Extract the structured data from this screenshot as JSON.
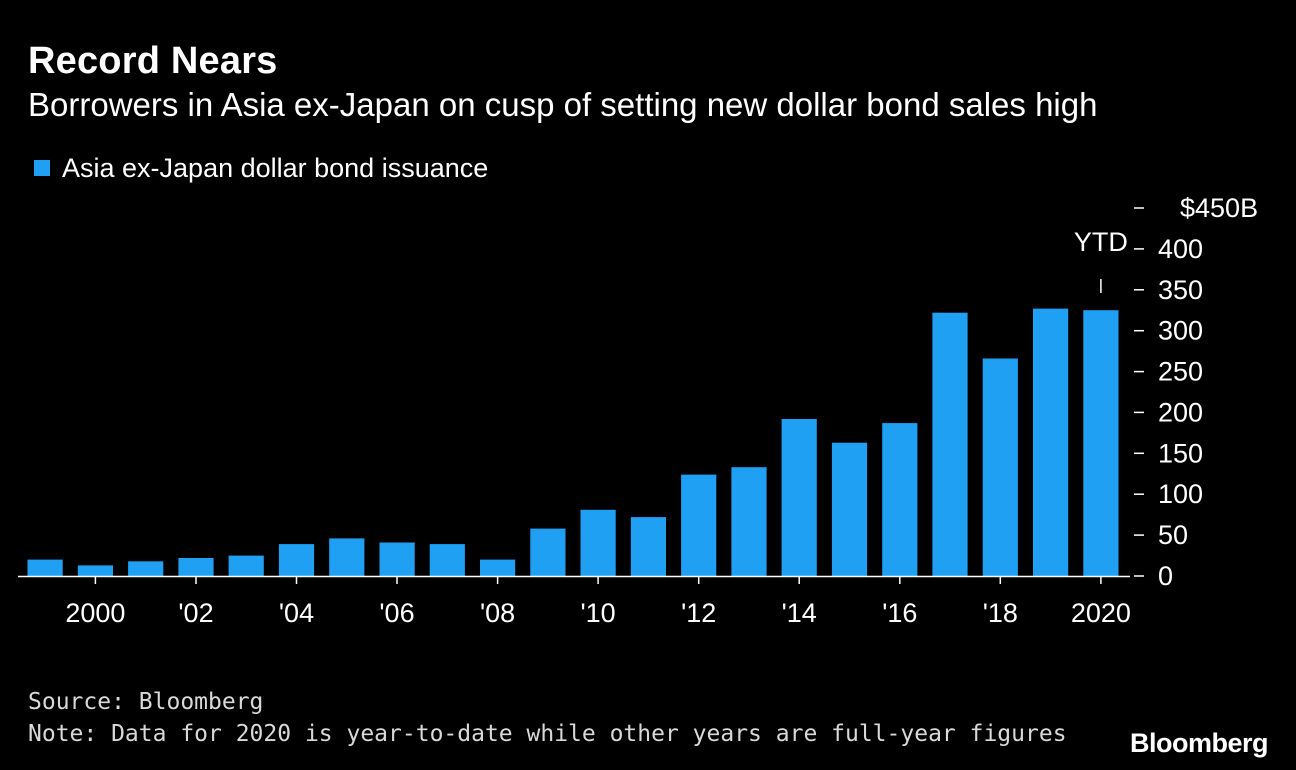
{
  "title": "Record Nears",
  "subtitle": "Borrowers in Asia ex-Japan on cusp of setting new dollar bond sales high",
  "legend": {
    "label": "Asia ex-Japan dollar bond issuance",
    "color": "#1fa0f2"
  },
  "source": "Source: Bloomberg",
  "note": "Note: Data for 2020 is year-to-date while other years are full-year figures",
  "logo": "Bloomberg",
  "chart_data": {
    "type": "bar",
    "categories": [
      "1999",
      "2000",
      "2001",
      "2002",
      "2003",
      "2004",
      "2005",
      "2006",
      "2007",
      "2008",
      "2009",
      "2010",
      "2011",
      "2012",
      "2013",
      "2014",
      "2015",
      "2016",
      "2017",
      "2018",
      "2019",
      "2020"
    ],
    "series": [
      {
        "name": "Asia ex-Japan dollar bond issuance",
        "color": "#1fa0f2",
        "values": [
          20,
          13,
          18,
          22,
          25,
          39,
          46,
          41,
          39,
          20,
          58,
          81,
          72,
          124,
          133,
          192,
          163,
          187,
          322,
          266,
          327,
          325
        ]
      }
    ],
    "x_tick_labels": [
      {
        "category": "2000",
        "label": "2000"
      },
      {
        "category": "2002",
        "label": "'02"
      },
      {
        "category": "2004",
        "label": "'04"
      },
      {
        "category": "2006",
        "label": "'06"
      },
      {
        "category": "2008",
        "label": "'08"
      },
      {
        "category": "2010",
        "label": "'10"
      },
      {
        "category": "2012",
        "label": "'12"
      },
      {
        "category": "2014",
        "label": "'14"
      },
      {
        "category": "2016",
        "label": "'16"
      },
      {
        "category": "2018",
        "label": "'18"
      },
      {
        "category": "2020",
        "label": "2020"
      }
    ],
    "y_ticks": [
      0,
      50,
      100,
      150,
      200,
      250,
      300,
      350,
      400,
      450
    ],
    "y_tick_labels": [
      "0",
      "50",
      "100",
      "150",
      "200",
      "250",
      "300",
      "350",
      "400",
      "$450B"
    ],
    "ylim": [
      0,
      450
    ],
    "y_axis_side": "right",
    "grid": false,
    "legend_position": "top-left",
    "annotations": [
      {
        "category": "2020",
        "text": "YTD"
      }
    ],
    "xlabel": "",
    "ylabel": ""
  }
}
